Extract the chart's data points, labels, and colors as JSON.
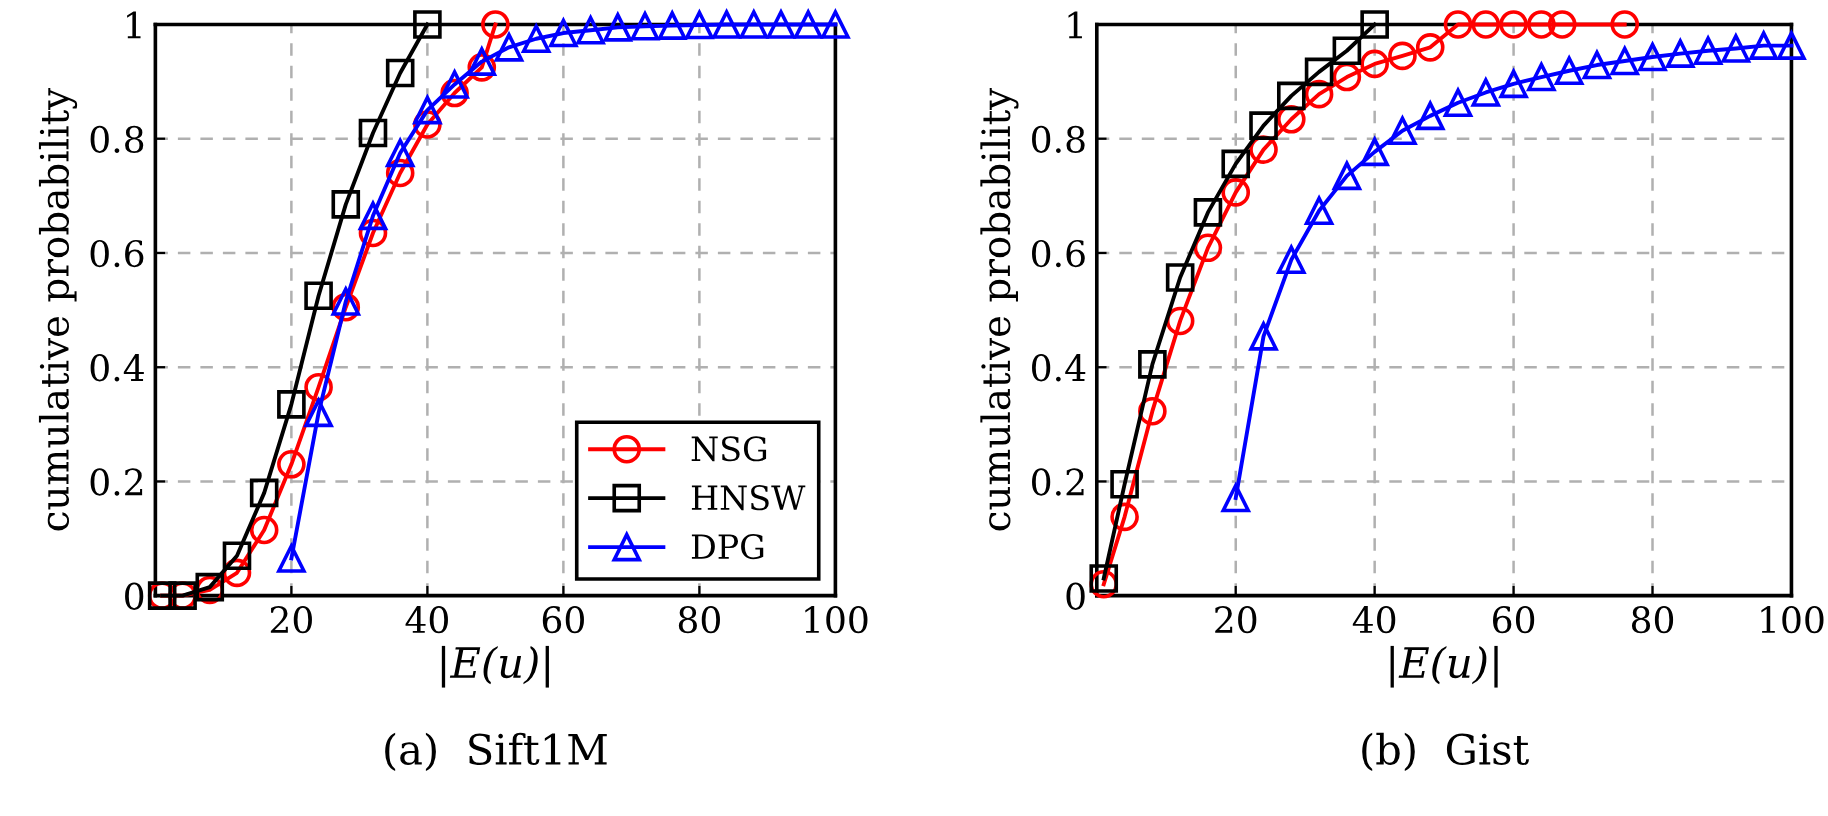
{
  "chart_data": [
    {
      "type": "line",
      "title": "(a)  Sift1M",
      "xlabel": "|E(u)|",
      "ylabel": "cumulative probability",
      "xlim": [
        0,
        100
      ],
      "ylim": [
        0,
        1
      ],
      "xticks": [
        20,
        40,
        60,
        80,
        100
      ],
      "yticks": [
        0,
        0.2,
        0.4,
        0.6,
        0.8,
        1
      ],
      "grid": true,
      "legend": "bottom right",
      "series": [
        {
          "name": "NSG",
          "color": "#ff0000",
          "marker": "circle",
          "x": [
            1,
            4,
            8,
            12,
            16,
            20,
            24,
            28,
            32,
            36,
            40,
            44,
            48,
            50
          ],
          "values": [
            0,
            0,
            0.01,
            0.04,
            0.115,
            0.23,
            0.365,
            0.505,
            0.635,
            0.74,
            0.825,
            0.88,
            0.925,
            1
          ]
        },
        {
          "name": "HNSW",
          "color": "#000000",
          "marker": "square",
          "x": [
            1,
            4,
            8,
            12,
            16,
            20,
            24,
            28,
            32,
            36,
            40
          ],
          "values": [
            0,
            0,
            0.015,
            0.07,
            0.18,
            0.335,
            0.525,
            0.685,
            0.81,
            0.915,
            1
          ]
        },
        {
          "name": "DPG",
          "color": "#0000ff",
          "marker": "triangle",
          "x": [
            20,
            24,
            28,
            32,
            36,
            40,
            44,
            48,
            52,
            56,
            60,
            64,
            68,
            72,
            76,
            80,
            84,
            88,
            92,
            96,
            100
          ],
          "values": [
            0.065,
            0.32,
            0.515,
            0.665,
            0.775,
            0.85,
            0.895,
            0.935,
            0.96,
            0.975,
            0.985,
            0.99,
            0.995,
            0.997,
            0.998,
            0.999,
            1,
            1,
            1,
            1,
            1
          ]
        }
      ]
    },
    {
      "type": "line",
      "title": "(b)  Gist",
      "xlabel": "|E(u)|",
      "ylabel": "cumulative probability",
      "xlim": [
        0,
        100
      ],
      "ylim": [
        0,
        1
      ],
      "xticks": [
        20,
        40,
        60,
        80,
        100
      ],
      "yticks": [
        0,
        0.2,
        0.4,
        0.6,
        0.8,
        1
      ],
      "grid": true,
      "series": [
        {
          "color": "#ff0000",
          "marker": "circle",
          "x": [
            1,
            4,
            8,
            12,
            16,
            20,
            24,
            28,
            32,
            36,
            40,
            44,
            48,
            52,
            56,
            60,
            64,
            67,
            76
          ],
          "values": [
            0.02,
            0.138,
            0.323,
            0.481,
            0.609,
            0.706,
            0.781,
            0.834,
            0.878,
            0.908,
            0.931,
            0.945,
            0.96,
            1,
            1,
            1,
            1,
            1,
            1
          ]
        },
        {
          "color": "#000000",
          "marker": "square",
          "x": [
            1,
            4,
            8,
            12,
            16,
            20,
            24,
            28,
            32,
            36,
            40
          ],
          "values": [
            0.03,
            0.195,
            0.405,
            0.557,
            0.671,
            0.756,
            0.823,
            0.875,
            0.917,
            0.954,
            1
          ]
        },
        {
          "color": "#0000ff",
          "marker": "triangle",
          "x": [
            20,
            24,
            28,
            32,
            36,
            40,
            44,
            48,
            52,
            56,
            60,
            64,
            68,
            72,
            76,
            80,
            84,
            88,
            92,
            96,
            100
          ],
          "values": [
            0.171,
            0.454,
            0.588,
            0.674,
            0.735,
            0.777,
            0.814,
            0.84,
            0.863,
            0.881,
            0.896,
            0.908,
            0.919,
            0.929,
            0.936,
            0.943,
            0.949,
            0.954,
            0.958,
            0.963,
            0.963
          ]
        }
      ]
    }
  ]
}
